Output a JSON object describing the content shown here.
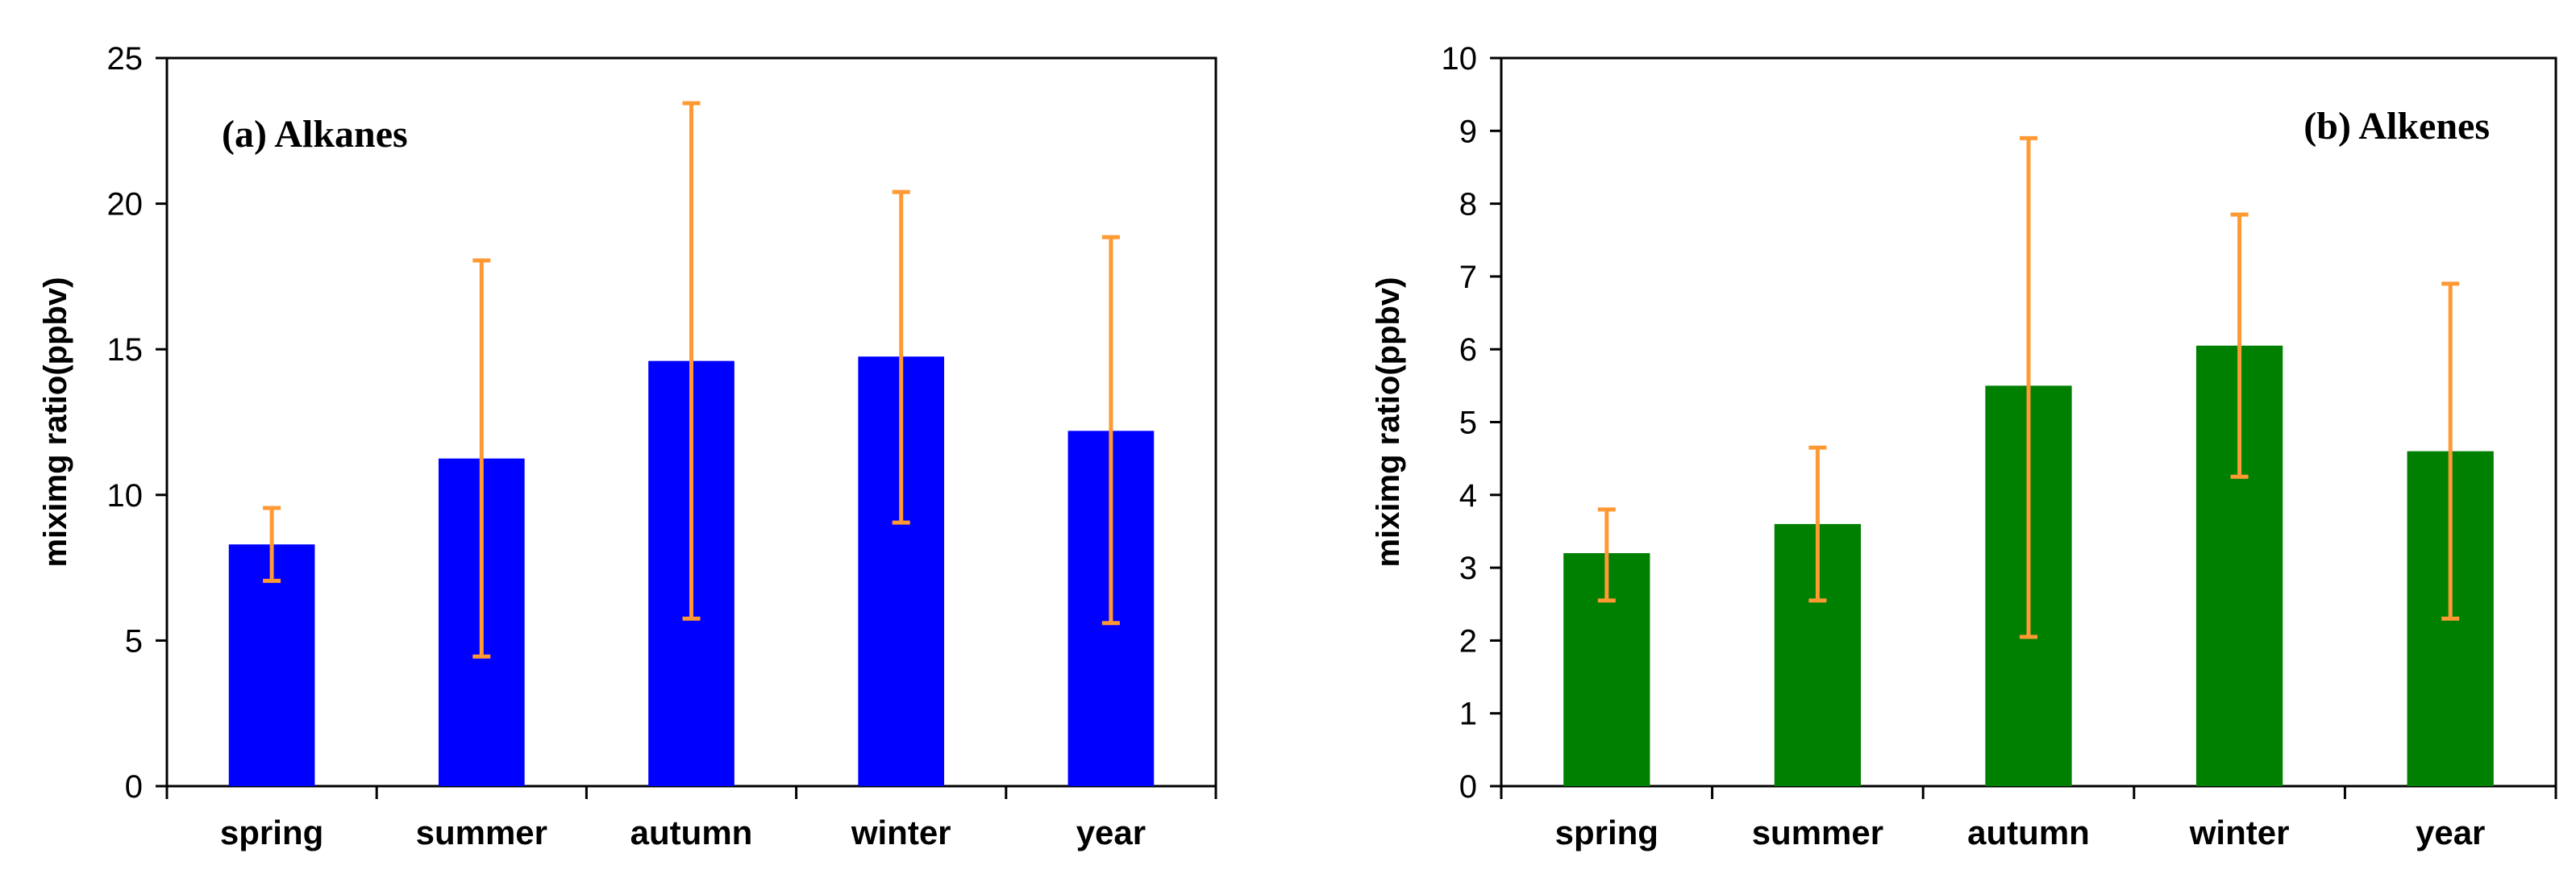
{
  "chart_data": [
    {
      "type": "bar",
      "title": "(a) Alkanes",
      "xlabel": "",
      "ylabel": "miximg ratio(ppbv)",
      "categories": [
        "spring",
        "summer",
        "autumn",
        "winter",
        "year"
      ],
      "values": [
        8.3,
        11.25,
        14.6,
        14.75,
        12.2
      ],
      "error_low": [
        7.05,
        4.45,
        5.75,
        9.05,
        5.6
      ],
      "error_high": [
        9.55,
        18.05,
        23.45,
        20.4,
        18.85
      ],
      "ylim": [
        0,
        25
      ],
      "yticks": [
        "0",
        "5",
        "10",
        "15",
        "20",
        "25"
      ],
      "bar_color": "#0000ff",
      "error_color": "#ff9933",
      "legend": "none",
      "grid": false
    },
    {
      "type": "bar",
      "title": "(b) Alkenes",
      "xlabel": "",
      "ylabel": "miximg ratio(ppbv)",
      "categories": [
        "spring",
        "summer",
        "autumn",
        "winter",
        "year"
      ],
      "values": [
        3.2,
        3.6,
        5.5,
        6.05,
        4.6
      ],
      "error_low": [
        2.55,
        2.55,
        2.05,
        4.25,
        2.3
      ],
      "error_high": [
        3.8,
        4.65,
        8.9,
        7.85,
        6.9
      ],
      "ylim": [
        0,
        10
      ],
      "yticks": [
        "0",
        "1",
        "2",
        "3",
        "4",
        "5",
        "6",
        "7",
        "8",
        "9",
        "10"
      ],
      "bar_color": "#008000",
      "error_color": "#ff9933",
      "legend": "none",
      "grid": false
    }
  ]
}
